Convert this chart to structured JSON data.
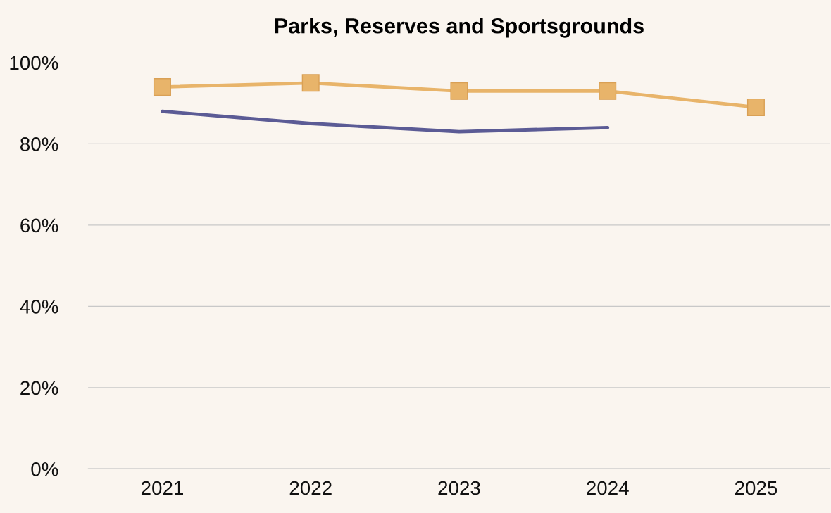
{
  "chart_data": {
    "type": "line",
    "title": "Parks, Reserves and Sportsgrounds",
    "categories": [
      "2021",
      "2022",
      "2023",
      "2024",
      "2025"
    ],
    "series": [
      {
        "color": "#5b5b95",
        "values": [
          88,
          85,
          83,
          84,
          null
        ],
        "marker": "none"
      },
      {
        "color": "#e8b46a",
        "values": [
          94,
          95,
          93,
          93,
          89
        ],
        "marker": "square"
      }
    ],
    "ylim": [
      0,
      100
    ],
    "yticks": [
      {
        "value": 0,
        "label": "0%"
      },
      {
        "value": 20,
        "label": "20%"
      },
      {
        "value": 40,
        "label": "40%"
      },
      {
        "value": 60,
        "label": "60%"
      },
      {
        "value": 80,
        "label": "80%"
      },
      {
        "value": 100,
        "label": "100%"
      }
    ],
    "grid": "y",
    "legend": false,
    "line_style": "solid"
  }
}
